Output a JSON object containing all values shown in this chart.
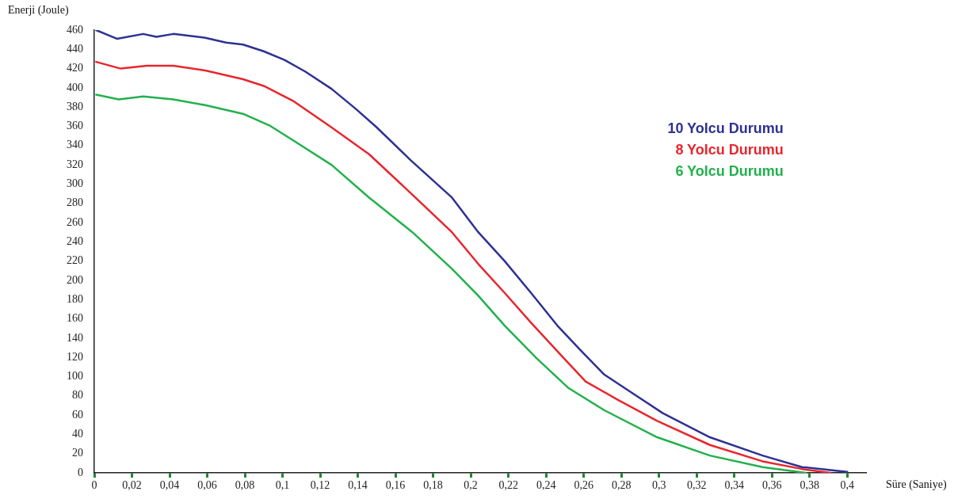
{
  "chart_data": {
    "type": "line",
    "xlabel": "Süre (Saniye)",
    "ylabel": "Enerji (Joule)",
    "xlim": [
      0,
      0.41
    ],
    "ylim": [
      0,
      460
    ],
    "xticks": [
      0,
      {
        "value": 0.02,
        "label": "0,02"
      },
      {
        "value": 0.04,
        "label": "0,04"
      },
      {
        "value": 0.06,
        "label": "0,06"
      },
      {
        "value": 0.08,
        "label": "0,08"
      },
      {
        "value": 0.1,
        "label": "0,1"
      },
      {
        "value": 0.12,
        "label": "0,12"
      },
      {
        "value": 0.14,
        "label": "0,14"
      },
      {
        "value": 0.16,
        "label": "0,16"
      },
      {
        "value": 0.18,
        "label": "0,18"
      },
      {
        "value": 0.2,
        "label": "0,2"
      },
      {
        "value": 0.22,
        "label": "0,22"
      },
      {
        "value": 0.24,
        "label": "0,24"
      },
      {
        "value": 0.26,
        "label": "0,26"
      },
      {
        "value": 0.28,
        "label": "0,28"
      },
      {
        "value": 0.3,
        "label": "0,3"
      },
      {
        "value": 0.32,
        "label": "0,32"
      },
      {
        "value": 0.34,
        "label": "0,34"
      },
      {
        "value": 0.36,
        "label": "0,36"
      },
      {
        "value": 0.38,
        "label": "0,38"
      },
      {
        "value": 0.4,
        "label": "0,4"
      }
    ],
    "yticks": [
      0,
      20,
      40,
      60,
      80,
      100,
      120,
      140,
      160,
      180,
      200,
      220,
      240,
      260,
      280,
      300,
      320,
      340,
      360,
      380,
      400,
      420,
      440,
      460
    ],
    "grid": false,
    "legend": "top right",
    "marker": "none",
    "line_style": "solid",
    "series": [
      {
        "name": "10 Yolcu Durumu",
        "color": "#2e3192",
        "x": [
          0.001,
          0.012,
          0.026,
          0.033,
          0.042,
          0.059,
          0.07,
          0.079,
          0.09,
          0.101,
          0.112,
          0.126,
          0.139,
          0.15,
          0.168,
          0.19,
          0.204,
          0.218,
          0.232,
          0.246,
          0.259,
          0.271,
          0.285,
          0.302,
          0.327,
          0.355,
          0.376,
          0.4
        ],
        "values": [
          460,
          451,
          456,
          453,
          456,
          452,
          447,
          445,
          438,
          429,
          417,
          399,
          378,
          359,
          325,
          286,
          250,
          220,
          187,
          153,
          126,
          102,
          84,
          62,
          37,
          18,
          6,
          1
        ]
      },
      {
        "name": "8 Yolcu Durumu",
        "color": "#e8262d",
        "x": [
          0.001,
          0.014,
          0.028,
          0.042,
          0.059,
          0.079,
          0.09,
          0.106,
          0.126,
          0.146,
          0.169,
          0.19,
          0.204,
          0.218,
          0.232,
          0.249,
          0.261,
          0.278,
          0.299,
          0.327,
          0.355,
          0.376,
          0.391
        ],
        "values": [
          427,
          420,
          423,
          423,
          418,
          409,
          402,
          386,
          359,
          331,
          289,
          250,
          217,
          187,
          156,
          120,
          95,
          76,
          54,
          29,
          12,
          4,
          0
        ]
      },
      {
        "name": "6 Yolcu Durumu",
        "color": "#22b14c",
        "x": [
          0.001,
          0.013,
          0.026,
          0.042,
          0.059,
          0.079,
          0.093,
          0.106,
          0.126,
          0.146,
          0.169,
          0.19,
          0.204,
          0.218,
          0.235,
          0.252,
          0.271,
          0.299,
          0.327,
          0.355,
          0.378
        ],
        "values": [
          393,
          388,
          391,
          388,
          382,
          373,
          361,
          345,
          320,
          286,
          250,
          212,
          184,
          153,
          119,
          88,
          65,
          37,
          18,
          6,
          0
        ]
      }
    ]
  }
}
